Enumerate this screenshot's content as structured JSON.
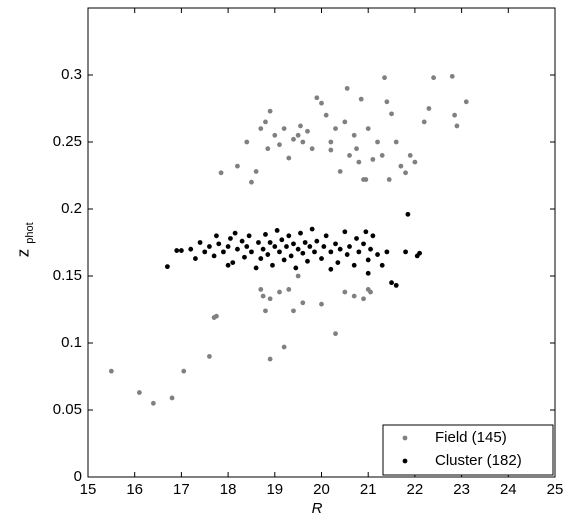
{
  "chart_data": {
    "type": "scatter",
    "xlabel": "R",
    "ylabel": "z",
    "ylabel_sub": "phot",
    "xlim": [
      15,
      25
    ],
    "ylim": [
      0,
      0.35
    ],
    "xticks": [
      15,
      16,
      17,
      18,
      19,
      20,
      21,
      22,
      23,
      24,
      25
    ],
    "yticks": [
      0,
      0.05,
      0.1,
      0.15,
      0.2,
      0.25,
      0.3
    ],
    "legend": "lower right",
    "series": [
      {
        "name": "Field (145)",
        "color": "#808080",
        "x": [
          15.5,
          16.1,
          16.4,
          16.8,
          17.05,
          17.6,
          17.75,
          17.7,
          18.9,
          19.2,
          18.7,
          18.75,
          18.8,
          18.9,
          19.1,
          19.3,
          19.4,
          19.6,
          20.0,
          20.3,
          20.5,
          20.7,
          20.9,
          21.05,
          21.0,
          19.5,
          17.85,
          18.2,
          18.4,
          18.5,
          18.6,
          18.7,
          18.8,
          18.9,
          18.85,
          19.0,
          19.1,
          19.2,
          19.3,
          19.4,
          19.5,
          19.55,
          19.6,
          19.7,
          19.8,
          19.9,
          20.0,
          20.1,
          20.2,
          20.3,
          20.4,
          20.5,
          20.55,
          20.6,
          20.7,
          20.75,
          20.8,
          20.85,
          20.9,
          21.0,
          21.1,
          21.2,
          21.3,
          21.35,
          21.4,
          21.5,
          21.6,
          21.7,
          21.8,
          21.9,
          22.0,
          22.2,
          22.3,
          22.4,
          22.8,
          22.85,
          22.9,
          23.1,
          20.95,
          21.45,
          20.2
        ],
        "y": [
          0.079,
          0.063,
          0.055,
          0.059,
          0.079,
          0.09,
          0.12,
          0.119,
          0.088,
          0.097,
          0.14,
          0.135,
          0.124,
          0.133,
          0.138,
          0.14,
          0.124,
          0.13,
          0.129,
          0.107,
          0.138,
          0.135,
          0.133,
          0.138,
          0.14,
          0.15,
          0.227,
          0.232,
          0.25,
          0.22,
          0.228,
          0.26,
          0.265,
          0.273,
          0.245,
          0.255,
          0.248,
          0.26,
          0.238,
          0.252,
          0.255,
          0.262,
          0.25,
          0.258,
          0.245,
          0.283,
          0.279,
          0.27,
          0.25,
          0.26,
          0.228,
          0.265,
          0.29,
          0.24,
          0.255,
          0.245,
          0.235,
          0.282,
          0.222,
          0.26,
          0.237,
          0.25,
          0.24,
          0.298,
          0.28,
          0.271,
          0.25,
          0.232,
          0.227,
          0.24,
          0.235,
          0.265,
          0.275,
          0.298,
          0.299,
          0.27,
          0.262,
          0.28,
          0.222,
          0.222,
          0.244
        ]
      },
      {
        "name": "Cluster (182)",
        "color": "#000000",
        "x": [
          16.7,
          16.9,
          17.0,
          17.2,
          17.3,
          17.4,
          17.5,
          17.6,
          17.7,
          17.75,
          17.8,
          17.9,
          18.0,
          18.05,
          18.1,
          18.15,
          18.2,
          18.3,
          18.35,
          18.4,
          18.45,
          18.5,
          18.6,
          18.65,
          18.7,
          18.75,
          18.8,
          18.85,
          18.9,
          18.95,
          19.0,
          19.05,
          19.1,
          19.15,
          19.2,
          19.25,
          19.3,
          19.35,
          19.4,
          19.45,
          19.5,
          19.55,
          19.6,
          19.65,
          19.7,
          19.75,
          19.8,
          19.85,
          19.9,
          20.0,
          20.05,
          20.1,
          20.2,
          20.3,
          20.35,
          20.4,
          20.5,
          20.55,
          20.6,
          20.7,
          20.75,
          20.8,
          20.9,
          20.95,
          21.0,
          21.05,
          21.1,
          21.2,
          21.3,
          21.4,
          21.5,
          21.6,
          21.8,
          21.85,
          22.05,
          22.1,
          21.0,
          20.2,
          18.0
        ],
        "y": [
          0.157,
          0.169,
          0.169,
          0.17,
          0.163,
          0.175,
          0.168,
          0.172,
          0.165,
          0.18,
          0.174,
          0.168,
          0.172,
          0.178,
          0.16,
          0.182,
          0.17,
          0.176,
          0.164,
          0.172,
          0.18,
          0.168,
          0.156,
          0.175,
          0.163,
          0.17,
          0.181,
          0.166,
          0.175,
          0.158,
          0.172,
          0.184,
          0.168,
          0.177,
          0.162,
          0.172,
          0.18,
          0.165,
          0.174,
          0.156,
          0.17,
          0.182,
          0.167,
          0.175,
          0.161,
          0.172,
          0.185,
          0.168,
          0.176,
          0.163,
          0.172,
          0.18,
          0.168,
          0.174,
          0.16,
          0.17,
          0.183,
          0.166,
          0.172,
          0.158,
          0.178,
          0.168,
          0.174,
          0.183,
          0.162,
          0.17,
          0.18,
          0.166,
          0.158,
          0.168,
          0.145,
          0.143,
          0.168,
          0.196,
          0.165,
          0.167,
          0.152,
          0.155,
          0.158
        ]
      }
    ]
  }
}
